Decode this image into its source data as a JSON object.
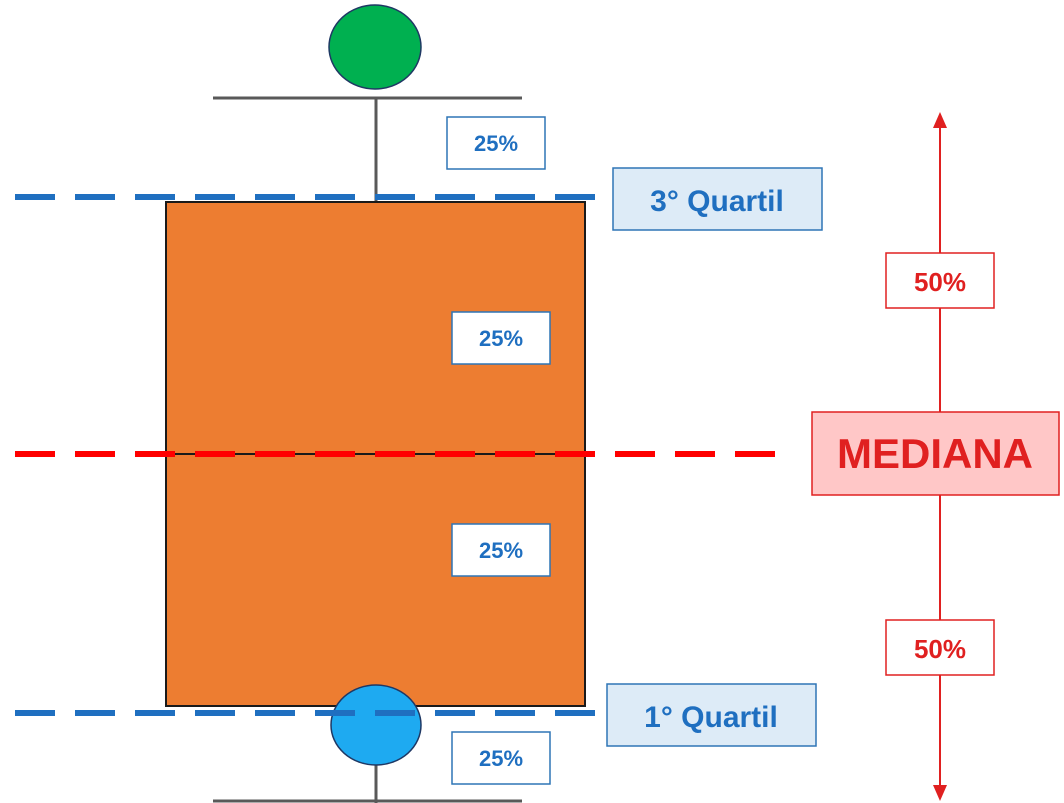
{
  "labels": {
    "third_quartile": "3° Quartil",
    "first_quartile": "1° Quartil",
    "median": "MEDIANA",
    "upper_whisker_pct": "25%",
    "upper_box_pct": "25%",
    "lower_box_pct": "25%",
    "lower_whisker_pct": "25%",
    "upper_half_pct": "50%",
    "lower_half_pct": "50%"
  },
  "colors": {
    "box_fill": "#ed7d31",
    "quartile_line": "#1f6fc0",
    "median_line": "#ff0000",
    "pct_text_blue": "#1f6fc0",
    "pct_text_red": "#e02020",
    "quartile_label_bg": "#ddebf7",
    "median_label_bg": "#ffc7c7",
    "top_marker": "#00b050",
    "bottom_marker": "#1eaaf1",
    "whisker": "#595959"
  }
}
